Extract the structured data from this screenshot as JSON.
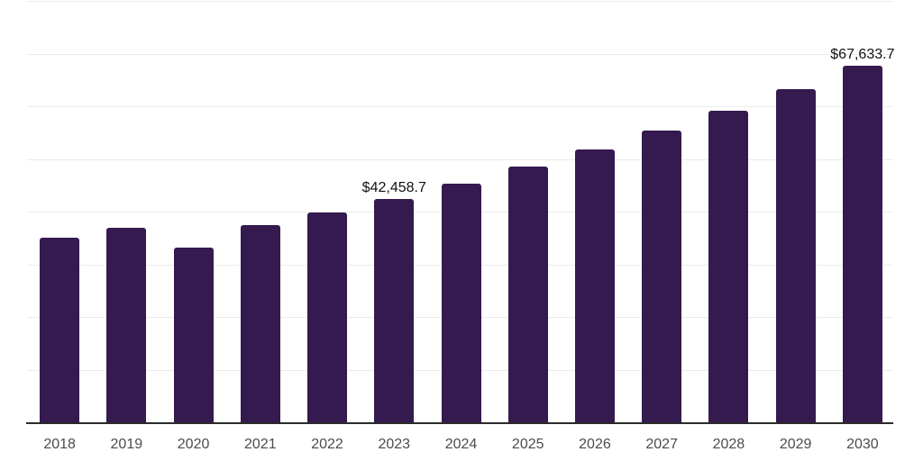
{
  "chart_data": {
    "type": "bar",
    "title": "",
    "categories": [
      "2018",
      "2019",
      "2020",
      "2021",
      "2022",
      "2023",
      "2024",
      "2025",
      "2026",
      "2027",
      "2028",
      "2029",
      "2030"
    ],
    "values": [
      35000,
      36950,
      33100,
      37500,
      39900,
      42458.7,
      45380,
      48500,
      51840,
      55400,
      59220,
      63290,
      67633.7
    ],
    "data_labels": [
      {
        "category": "2023",
        "text": "$42,458.7"
      },
      {
        "category": "2030",
        "text": "$67,633.7"
      }
    ],
    "value_prefix": "$",
    "ylim": [
      0,
      80000
    ],
    "gridline_step": 10000,
    "grid": true,
    "legend": "none",
    "y_axis_labels_visible": false,
    "xlabel": "",
    "ylabel": ""
  },
  "colors": {
    "bar": "#341a4e",
    "gridline": "#ebebeb",
    "axis": "#2b2b2b",
    "tick_label": "#4c4c4c",
    "data_label": "#111111",
    "background": "#ffffff"
  }
}
